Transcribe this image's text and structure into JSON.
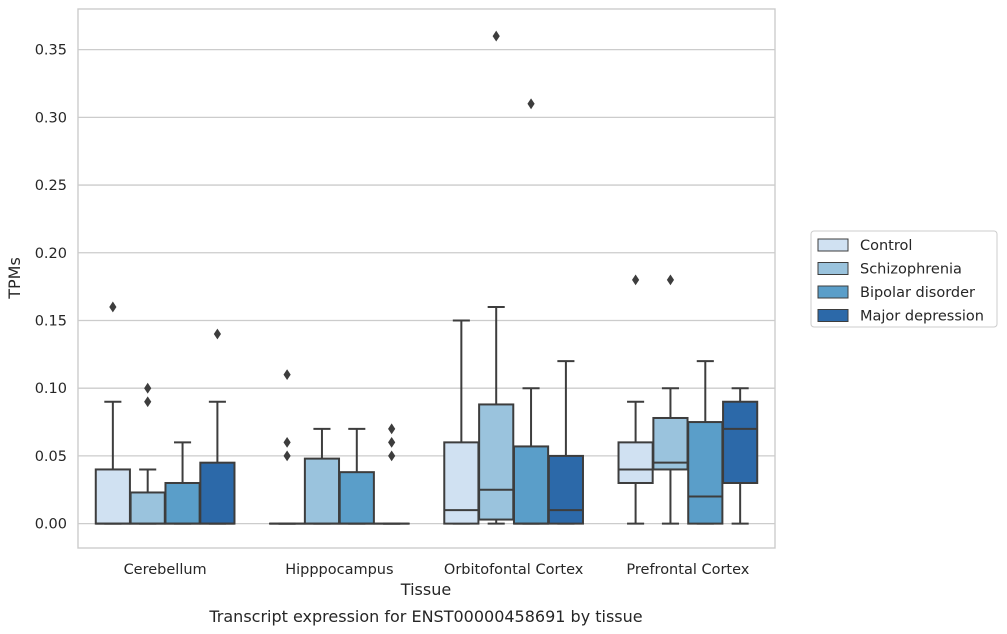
{
  "chart_data": {
    "type": "box",
    "title": "",
    "caption": "Transcript expression for ENST00000458691 by tissue",
    "xlabel": "Tissue",
    "ylabel": "TPMs",
    "ylim": [
      -0.018,
      0.38
    ],
    "yticks": [
      "0.00",
      "0.05",
      "0.10",
      "0.15",
      "0.20",
      "0.25",
      "0.30",
      "0.35"
    ],
    "ytick_values": [
      0,
      0.05,
      0.1,
      0.15,
      0.2,
      0.25,
      0.3,
      0.35
    ],
    "grid": true,
    "legend_position": "right",
    "categories": [
      "Cerebellum",
      "Hipppocampus",
      "Orbitofontal Cortex",
      "Prefrontal Cortex"
    ],
    "series": [
      {
        "name": "Control",
        "color": "#d0e1f2",
        "boxes": [
          {
            "q1": 0,
            "median": 0,
            "q3": 0.04,
            "whislo": 0,
            "whishi": 0.09,
            "fliers": [
              0.16
            ]
          },
          {
            "q1": 0,
            "median": 0,
            "q3": 0,
            "whislo": 0,
            "whishi": 0,
            "fliers": [
              0.05,
              0.06,
              0.11
            ]
          },
          {
            "q1": 0,
            "median": 0.01,
            "q3": 0.06,
            "whislo": 0,
            "whishi": 0.15,
            "fliers": []
          },
          {
            "q1": 0.03,
            "median": 0.04,
            "q3": 0.06,
            "whislo": 0,
            "whishi": 0.09,
            "fliers": [
              0.18
            ]
          }
        ]
      },
      {
        "name": "Schizophrenia",
        "color": "#9ac3dd",
        "boxes": [
          {
            "q1": 0,
            "median": 0,
            "q3": 0.023,
            "whislo": 0,
            "whishi": 0.04,
            "fliers": [
              0.09,
              0.1
            ]
          },
          {
            "q1": 0,
            "median": 0,
            "q3": 0.048,
            "whislo": 0,
            "whishi": 0.07,
            "fliers": []
          },
          {
            "q1": 0.003,
            "median": 0.025,
            "q3": 0.088,
            "whislo": 0,
            "whishi": 0.16,
            "fliers": [
              0.36
            ]
          },
          {
            "q1": 0.04,
            "median": 0.045,
            "q3": 0.078,
            "whislo": 0,
            "whishi": 0.1,
            "fliers": [
              0.18
            ]
          }
        ]
      },
      {
        "name": "Bipolar disorder",
        "color": "#5a9ec9",
        "boxes": [
          {
            "q1": 0,
            "median": 0,
            "q3": 0.03,
            "whislo": 0,
            "whishi": 0.06,
            "fliers": []
          },
          {
            "q1": 0,
            "median": 0,
            "q3": 0.038,
            "whislo": 0,
            "whishi": 0.07,
            "fliers": []
          },
          {
            "q1": 0,
            "median": 0,
            "q3": 0.057,
            "whislo": 0,
            "whishi": 0.1,
            "fliers": [
              0.31
            ]
          },
          {
            "q1": 0,
            "median": 0.02,
            "q3": 0.075,
            "whislo": 0,
            "whishi": 0.12,
            "fliers": []
          }
        ]
      },
      {
        "name": "Major depression",
        "color": "#2c69a9",
        "boxes": [
          {
            "q1": 0,
            "median": 0,
            "q3": 0.045,
            "whislo": 0,
            "whishi": 0.09,
            "fliers": [
              0.14
            ]
          },
          {
            "q1": 0,
            "median": 0,
            "q3": 0,
            "whislo": 0,
            "whishi": 0,
            "fliers": [
              0.05,
              0.06,
              0.07
            ]
          },
          {
            "q1": 0,
            "median": 0.01,
            "q3": 0.05,
            "whislo": 0,
            "whishi": 0.12,
            "fliers": []
          },
          {
            "q1": 0.03,
            "median": 0.07,
            "q3": 0.09,
            "whislo": 0,
            "whishi": 0.1,
            "fliers": []
          }
        ]
      }
    ]
  }
}
